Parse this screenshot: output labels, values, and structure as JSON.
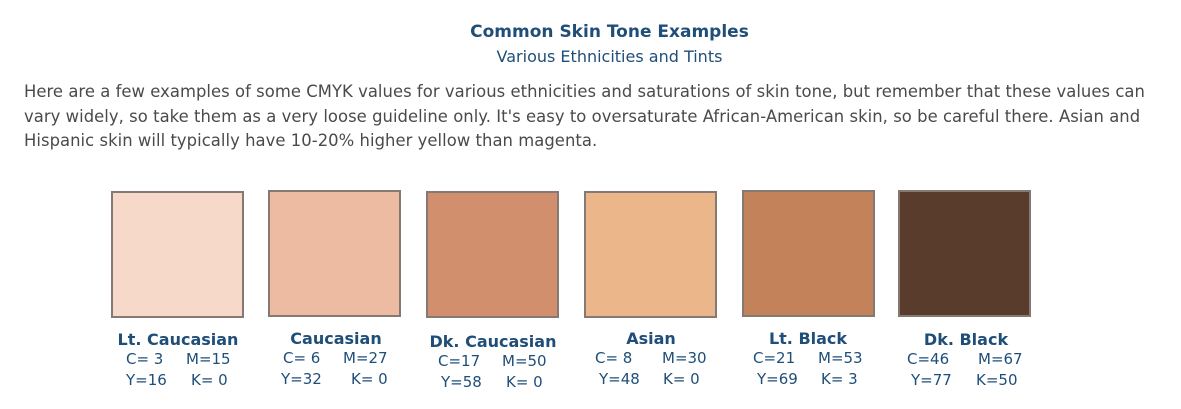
{
  "header": {
    "title": "Common Skin Tone Examples",
    "subtitle": "Various Ethnicities and Tints"
  },
  "intro": "Here are a few examples of some CMYK values for various ethnicities and saturations of skin tone, but remember that these values can vary widely, so take them as a very loose guideline only. It's easy to oversaturate African-American skin, so be careful there. Asian and Hispanic skin will typically have 10-20% higher yellow than magenta.",
  "swatches": [
    {
      "name": "Lt. Caucasian",
      "color": "#f6d9c9",
      "c": "C= 3",
      "m": "M=15",
      "y": "Y=16",
      "k": "K= 0"
    },
    {
      "name": "Caucasian",
      "color": "#ecbba2",
      "c": "C= 6",
      "m": "M=27",
      "y": "Y=32",
      "k": "K= 0"
    },
    {
      "name": "Dk. Caucasian",
      "color": "#d28f6e",
      "c": "C=17",
      "m": "M=50",
      "y": "Y=58",
      "k": "K= 0"
    },
    {
      "name": "Asian",
      "color": "#ebb78a",
      "c": "C= 8",
      "m": "M=30",
      "y": "Y=48",
      "k": "K= 0"
    },
    {
      "name": "Lt. Black",
      "color": "#c4825b",
      "c": "C=21",
      "m": "M=53",
      "y": "Y=69",
      "k": "K= 3"
    },
    {
      "name": "Dk. Black",
      "color": "#5a3c2d",
      "c": "C=46",
      "m": "M=67",
      "y": "Y=77",
      "k": "K=50"
    }
  ]
}
